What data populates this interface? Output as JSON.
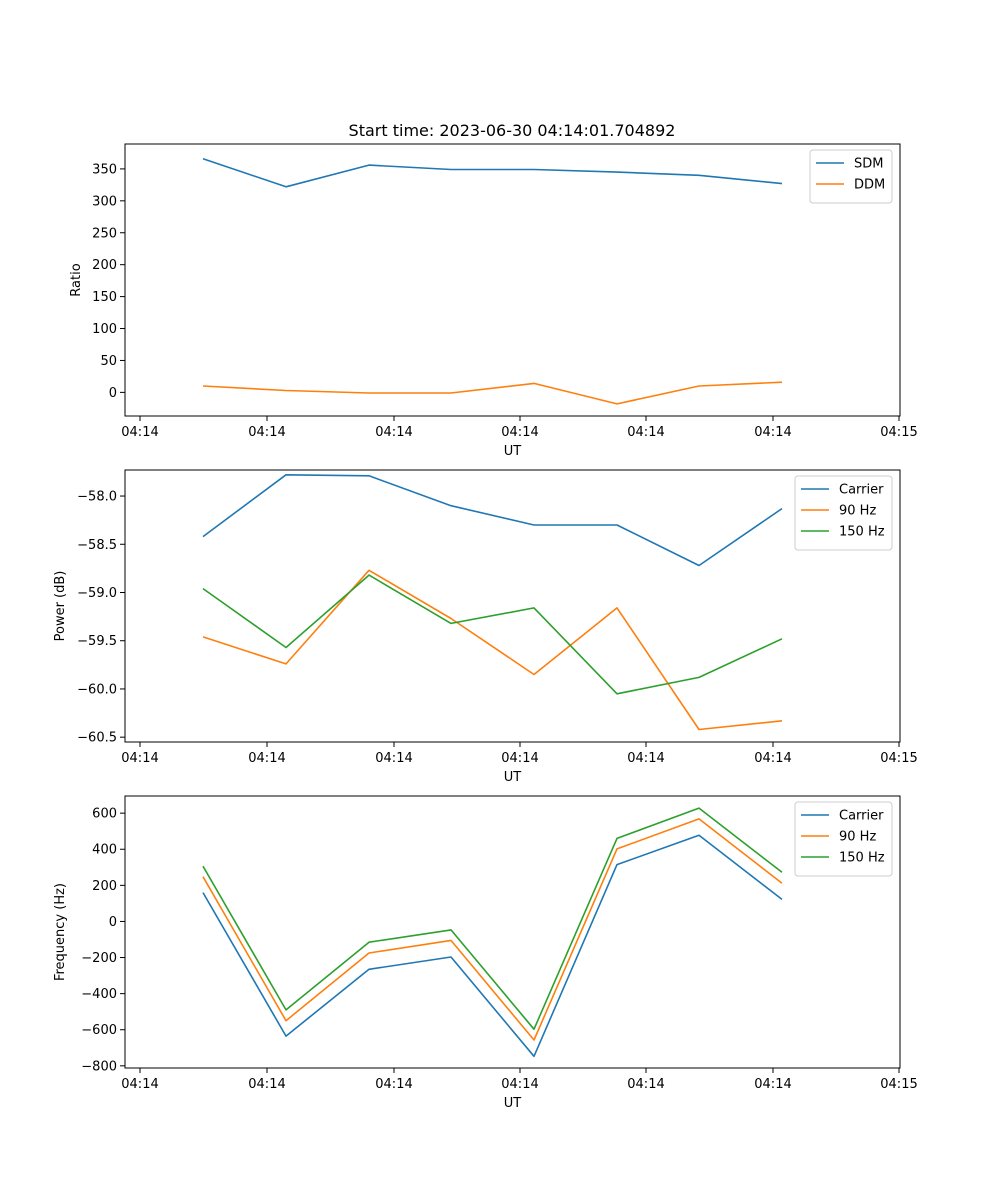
{
  "figure": {
    "title": "Start time: 2023-06-30 04:14:01.704892"
  },
  "chart_data": [
    {
      "type": "line",
      "xlabel": "UT",
      "ylabel": "Ratio",
      "x_tick_labels": [
        "04:14",
        "04:14",
        "04:14",
        "04:14",
        "04:14",
        "04:14",
        "04:14",
        "04:15"
      ],
      "y_ticks": [
        0,
        50,
        100,
        150,
        200,
        250,
        300,
        350
      ],
      "y_tick_labels": [
        "0",
        "50",
        "100",
        "150",
        "200",
        "250",
        "300",
        "350"
      ],
      "ylim": [
        -37,
        389
      ],
      "legend_position": "upper right",
      "series": [
        {
          "name": "SDM",
          "color": "#1f77b4",
          "values": [
            366,
            322,
            356,
            349,
            349,
            345,
            340,
            327
          ]
        },
        {
          "name": "DDM",
          "color": "#ff7f0e",
          "values": [
            10,
            3,
            -1,
            -1,
            14,
            -18,
            10,
            16
          ]
        }
      ]
    },
    {
      "type": "line",
      "xlabel": "UT",
      "ylabel": "Power (dB)",
      "x_tick_labels": [
        "04:14",
        "04:14",
        "04:14",
        "04:14",
        "04:14",
        "04:14",
        "04:14",
        "04:15"
      ],
      "y_ticks": [
        -60.5,
        -60.0,
        -59.5,
        -59.0,
        -58.5,
        -58.0
      ],
      "y_tick_labels": [
        "−60.5",
        "−60.0",
        "−59.5",
        "−59.0",
        "−58.5",
        "−58.0"
      ],
      "ylim": [
        -60.55,
        -57.73
      ],
      "legend_position": "upper right",
      "series": [
        {
          "name": "Carrier",
          "color": "#1f77b4",
          "values": [
            -58.42,
            -57.78,
            -57.79,
            -58.1,
            -58.3,
            -58.3,
            -58.72,
            -58.13
          ]
        },
        {
          "name": "90 Hz",
          "color": "#ff7f0e",
          "values": [
            -59.46,
            -59.74,
            -58.77,
            -59.27,
            -59.85,
            -59.16,
            -60.42,
            -60.33
          ]
        },
        {
          "name": "150 Hz",
          "color": "#2ca02c",
          "values": [
            -58.96,
            -59.57,
            -58.82,
            -59.32,
            -59.16,
            -60.05,
            -59.88,
            -59.48
          ]
        }
      ]
    },
    {
      "type": "line",
      "xlabel": "UT",
      "ylabel": "Frequency (Hz)",
      "x_tick_labels": [
        "04:14",
        "04:14",
        "04:14",
        "04:14",
        "04:14",
        "04:14",
        "04:14",
        "04:15"
      ],
      "y_ticks": [
        -800,
        -600,
        -400,
        -200,
        0,
        200,
        400,
        600
      ],
      "y_tick_labels": [
        "−800",
        "−600",
        "−400",
        "−200",
        "0",
        "200",
        "400",
        "600"
      ],
      "ylim": [
        -812,
        695
      ],
      "legend_position": "upper right",
      "series": [
        {
          "name": "Carrier",
          "color": "#1f77b4",
          "values": [
            160,
            -635,
            -265,
            -197,
            -747,
            315,
            477,
            122
          ]
        },
        {
          "name": "90 Hz",
          "color": "#ff7f0e",
          "values": [
            248,
            -550,
            -175,
            -105,
            -657,
            402,
            568,
            212
          ]
        },
        {
          "name": "150 Hz",
          "color": "#2ca02c",
          "values": [
            306,
            -490,
            -115,
            -47,
            -597,
            460,
            628,
            272
          ]
        }
      ]
    }
  ]
}
